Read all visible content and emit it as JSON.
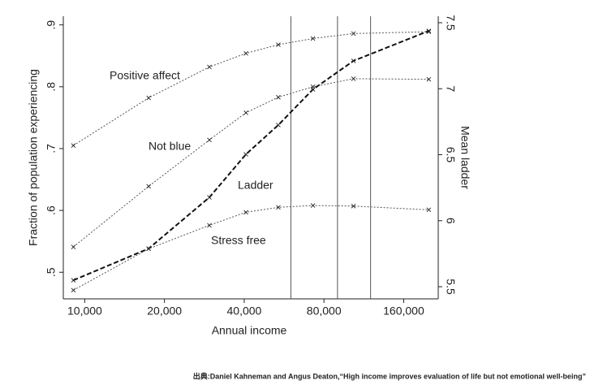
{
  "chart_data": {
    "type": "line",
    "xlabel": "Annual income",
    "ylabel": "Fraction of population experiencing",
    "y2label": "Mean ladder",
    "source": "出典:Daniel Kahneman and Angus Deaton,“High income improves evaluation of life but not emotional well-being”",
    "xscale": "log",
    "xlim": [
      8300,
      216000
    ],
    "xticks": [
      {
        "value": 10000,
        "label": "10,000"
      },
      {
        "value": 20000,
        "label": "20,000"
      },
      {
        "value": 40000,
        "label": "40,000"
      },
      {
        "value": 80000,
        "label": "80,000"
      },
      {
        "value": 160000,
        "label": "160,000"
      }
    ],
    "ylim": [
      0.457,
      0.914
    ],
    "yticks": [
      {
        "value": 0.5,
        "label": ".5"
      },
      {
        "value": 0.6,
        "label": ".6"
      },
      {
        "value": 0.7,
        "label": ".7"
      },
      {
        "value": 0.8,
        "label": ".8"
      },
      {
        "value": 0.9,
        "label": ".9"
      }
    ],
    "y2lim": [
      5.408,
      7.549
    ],
    "y2ticks": [
      5.5,
      6,
      6.5,
      7,
      7.5
    ],
    "vlines": [
      60000,
      90000,
      120000
    ],
    "x": [
      9060,
      17430,
      29550,
      40600,
      53800,
      72700,
      103400,
      199000
    ],
    "series": [
      {
        "name": "Positive affect",
        "color": "#555555",
        "values": [
          0.705,
          0.782,
          0.832,
          0.854,
          0.868,
          0.878,
          0.886,
          0.889
        ]
      },
      {
        "name": "Not blue",
        "color": "#555555",
        "values": [
          0.541,
          0.639,
          0.714,
          0.758,
          0.783,
          0.8,
          0.813,
          0.812
        ]
      },
      {
        "name": "Ladder",
        "color": "#111111",
        "axis": "y2",
        "values": [
          5.549,
          5.789,
          6.177,
          6.503,
          6.725,
          6.995,
          7.211,
          7.438
        ]
      },
      {
        "name": "Stress free",
        "color": "#555555",
        "values": [
          0.471,
          0.538,
          0.576,
          0.597,
          0.605,
          0.608,
          0.607,
          0.601
        ]
      }
    ]
  }
}
